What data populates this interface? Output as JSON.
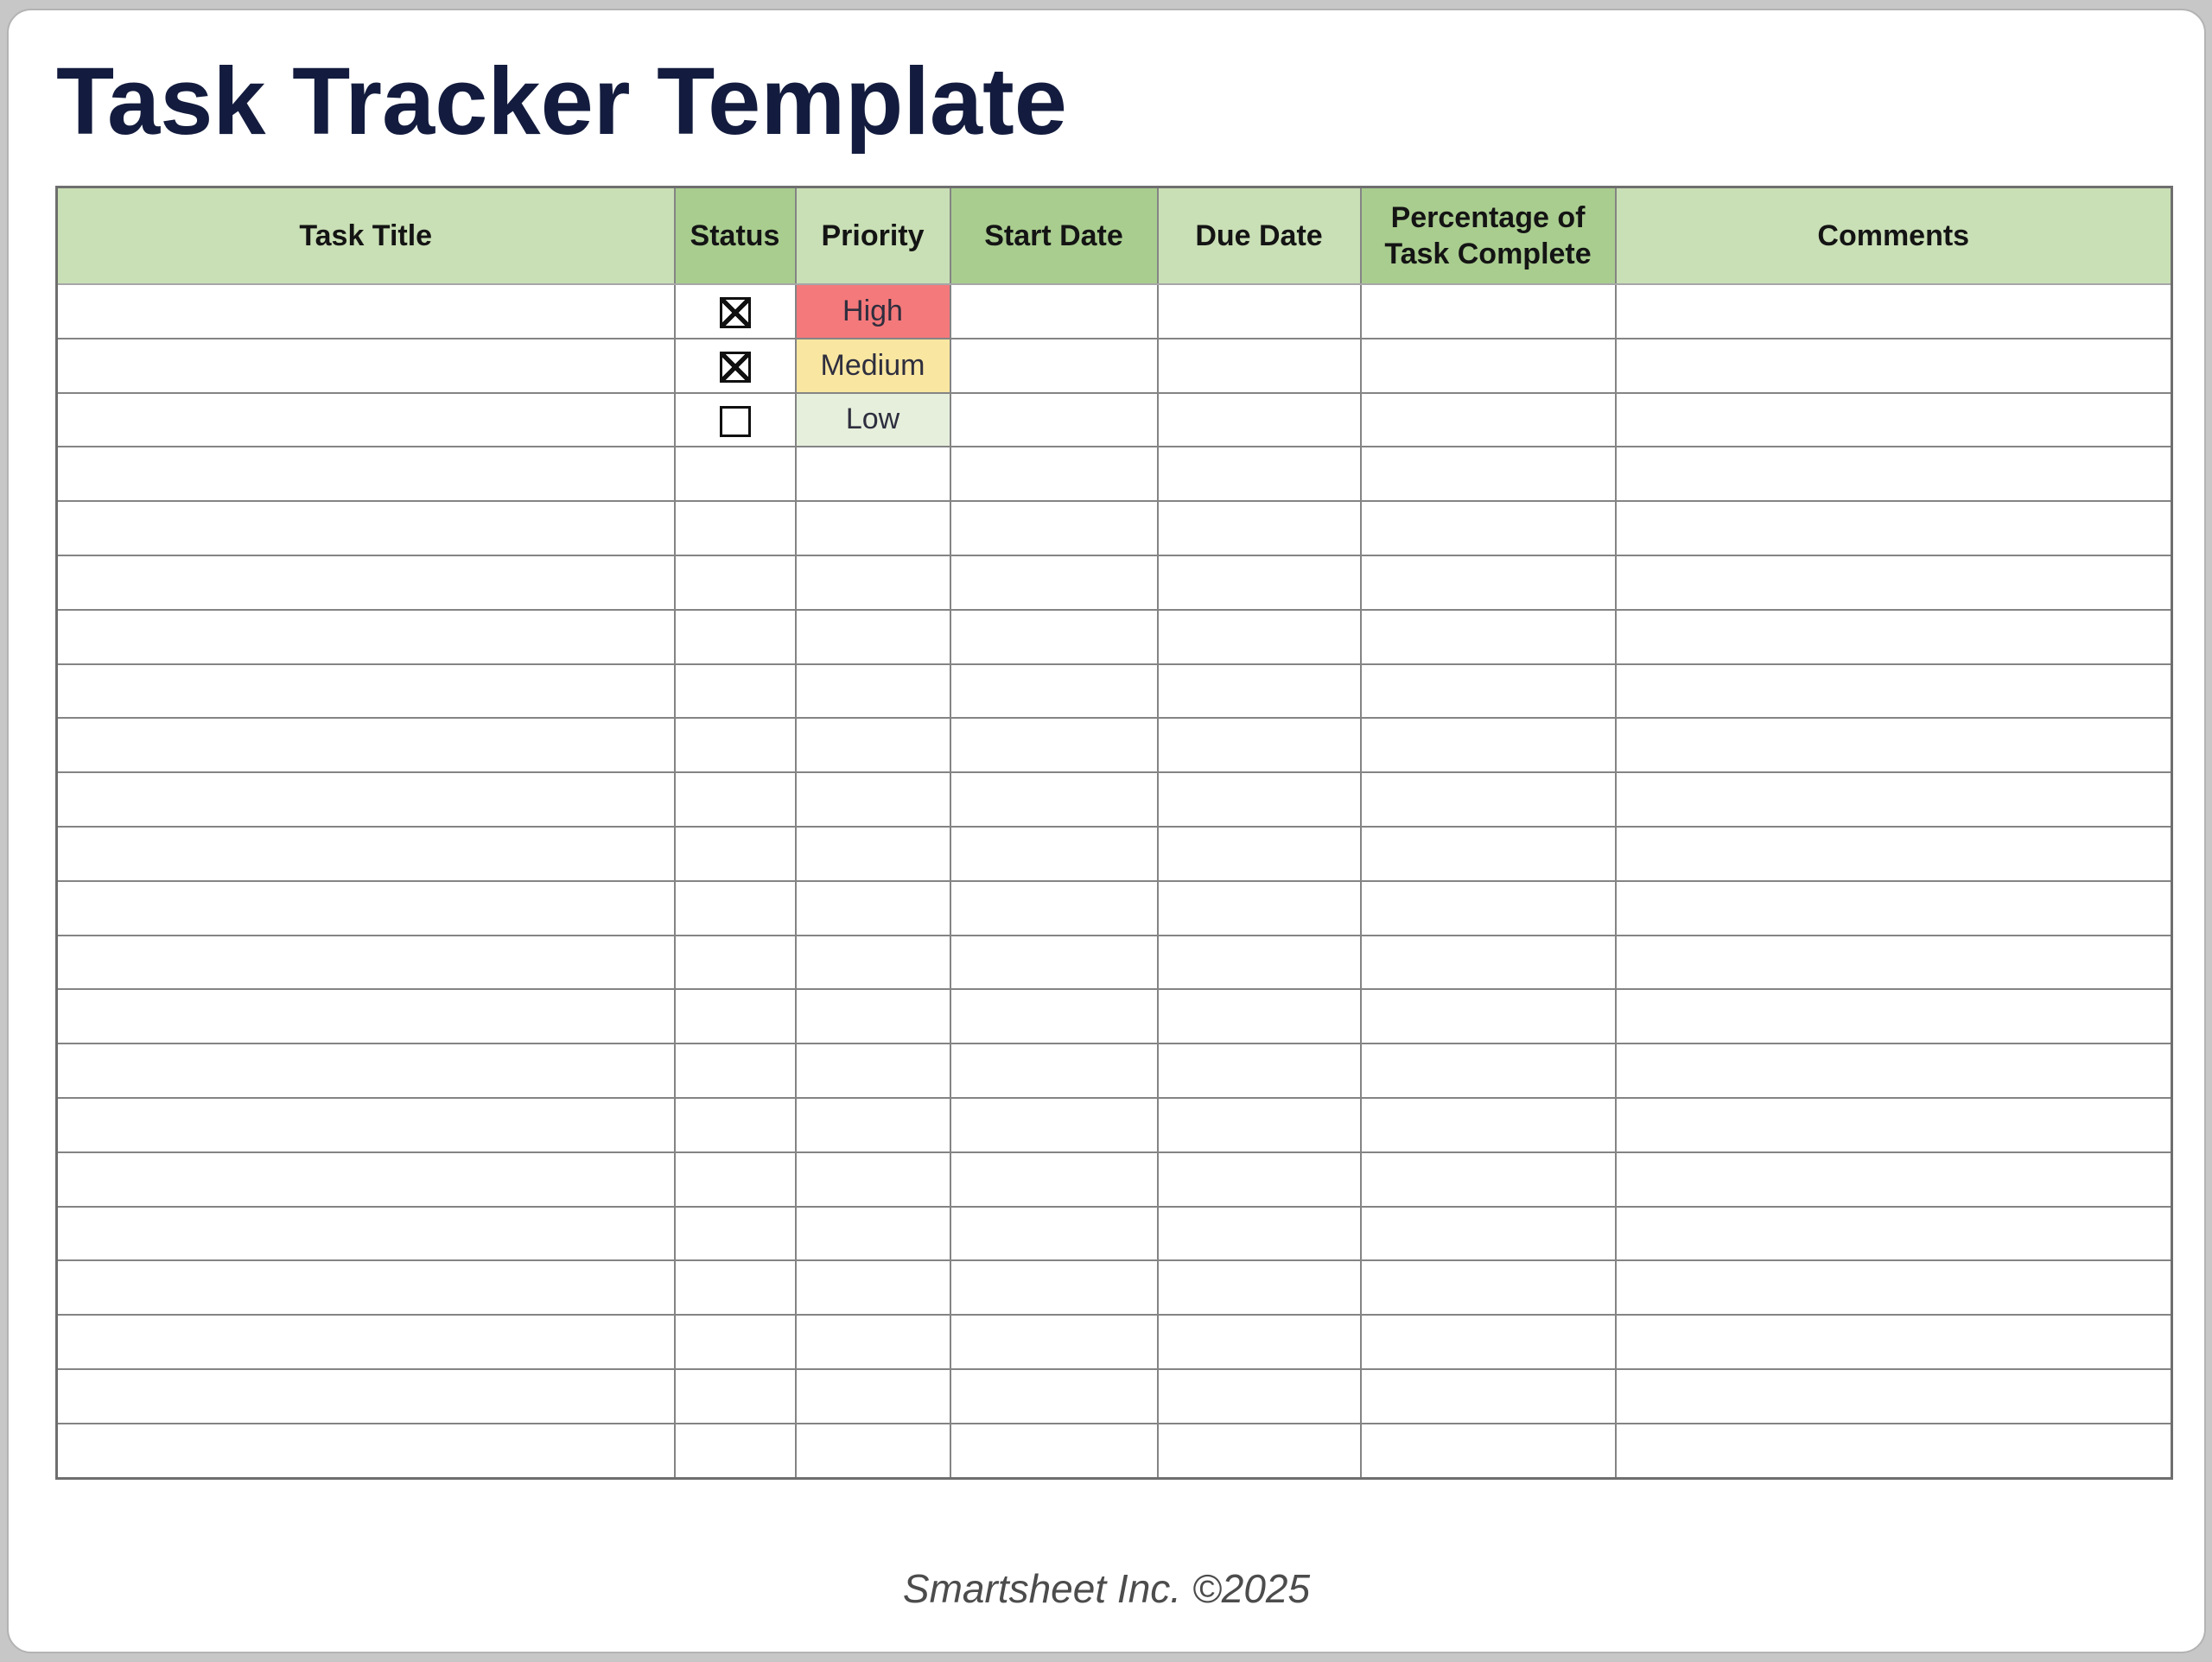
{
  "page": {
    "title": "Task Tracker Template",
    "title_color": "#131c3e",
    "background_color": "#c7c7c7"
  },
  "table": {
    "columns": [
      {
        "key": "task_title",
        "label": "Task Title",
        "shade": "light"
      },
      {
        "key": "status",
        "label": "Status",
        "shade": "dark"
      },
      {
        "key": "priority",
        "label": "Priority",
        "shade": "light"
      },
      {
        "key": "start_date",
        "label": "Start Date",
        "shade": "dark"
      },
      {
        "key": "due_date",
        "label": "Due Date",
        "shade": "light"
      },
      {
        "key": "pct_complete",
        "label": "Percentage of Task Complete",
        "shade": "dark"
      },
      {
        "key": "comments",
        "label": "Comments",
        "shade": "light"
      }
    ],
    "header_colors": {
      "light": "#c9dfb5",
      "dark": "#a9cd8f"
    },
    "priority_colors": {
      "High": "#f4797b",
      "Medium": "#f9e6a1",
      "Low": "#e5efdc"
    },
    "rows": [
      {
        "task_title": "",
        "status": "checked",
        "priority": "High",
        "start_date": "",
        "due_date": "",
        "pct_complete": "",
        "comments": ""
      },
      {
        "task_title": "",
        "status": "checked",
        "priority": "Medium",
        "start_date": "",
        "due_date": "",
        "pct_complete": "",
        "comments": ""
      },
      {
        "task_title": "",
        "status": "unchecked",
        "priority": "Low",
        "start_date": "",
        "due_date": "",
        "pct_complete": "",
        "comments": ""
      },
      {},
      {},
      {},
      {},
      {},
      {},
      {},
      {},
      {},
      {},
      {},
      {},
      {},
      {},
      {},
      {},
      {},
      {},
      {}
    ]
  },
  "footer": {
    "text": "Smartsheet Inc. ©2025"
  }
}
